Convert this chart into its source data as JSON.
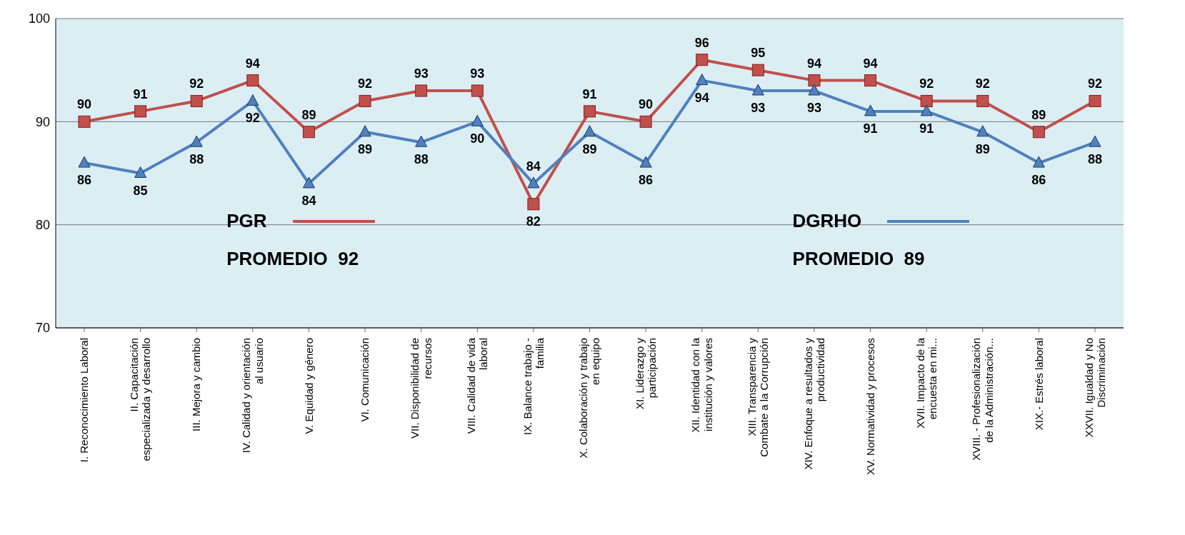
{
  "chart_data": {
    "type": "line",
    "categories": [
      "I. Reconocimiento Laboral",
      "II. Capacitación especializada y desarrollo",
      "III. Mejora y cambio",
      "IV. Calidad y orientación al usuario",
      "V. Equidad y género",
      "VI. Comunicación",
      "VII. Disponibilidad de recursos",
      "VIII. Calidad de vida laboral",
      "IX. Balance trabajo - familia",
      "X. Colaboración y trabajo en equipo",
      "XI. Liderazgo y participación",
      "XII. Identidad con la institución y valores",
      "XIII. Transparencia y Combate a la Corrupción",
      "XIV. Enfoque a resultados y productividad",
      "XV. Normatividad y procesos",
      "XVII. Impacto de la encuesta en mi...",
      "XVIII. - Profesionalización de la Administración...",
      "XIX.- Estrés laboral",
      "XXVII. Igualdad y No Discriminación"
    ],
    "series": [
      {
        "name": "PGR",
        "color": "#c0504d",
        "marker": "square",
        "values": [
          90,
          91,
          92,
          94,
          89,
          92,
          93,
          93,
          82,
          91,
          90,
          96,
          95,
          94,
          94,
          92,
          92,
          89,
          92
        ]
      },
      {
        "name": "DGRHO",
        "color": "#4f81bd",
        "marker": "triangle",
        "values": [
          86,
          85,
          88,
          92,
          84,
          89,
          88,
          90,
          84,
          89,
          86,
          94,
          93,
          93,
          91,
          91,
          89,
          86,
          88
        ]
      }
    ],
    "ylim": [
      70,
      100
    ],
    "yticks": [
      70,
      80,
      90,
      100
    ],
    "grid": "y",
    "legend": "bottom",
    "data_labels": true,
    "annotations": [
      "PROMEDIO  92",
      "PROMEDIO  89"
    ]
  }
}
